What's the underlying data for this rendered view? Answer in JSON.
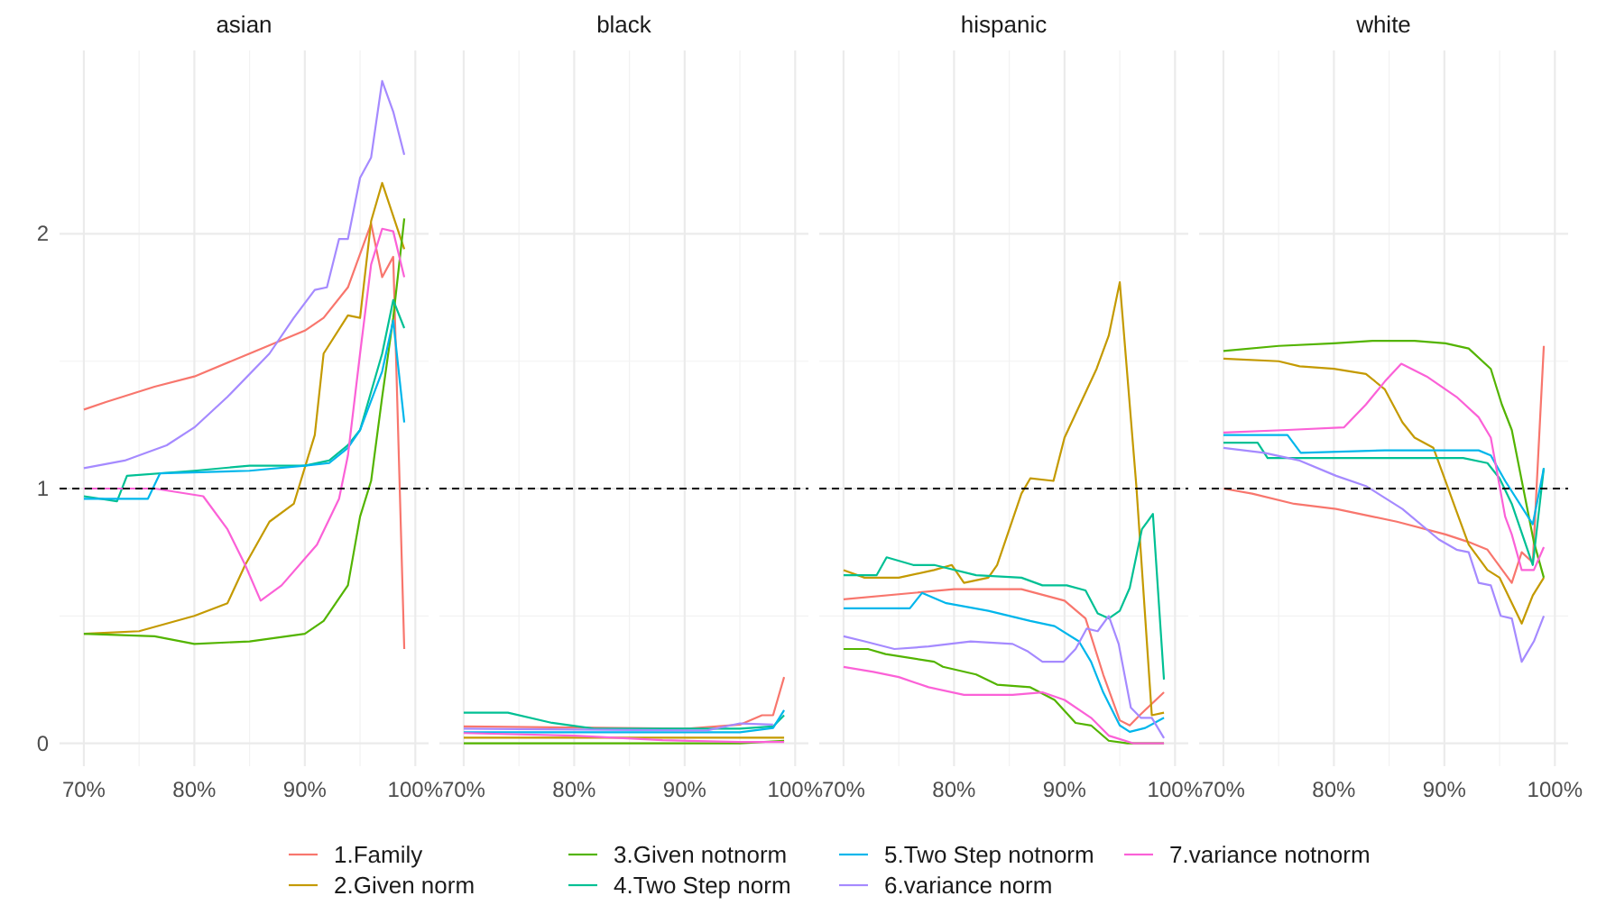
{
  "chart_data": [
    {
      "type": "line",
      "title": "asian",
      "xlim": [
        67.8,
        101.2
      ],
      "xticks": [
        {
          "value": 70,
          "label": "70%"
        },
        {
          "value": 80,
          "label": "80%"
        },
        {
          "value": 90,
          "label": "90%"
        },
        {
          "value": 100,
          "label": "100%"
        }
      ],
      "ylim": [
        -0.09,
        2.72
      ],
      "yticks": [
        0,
        1,
        2
      ],
      "grid": true,
      "legend": "bottom",
      "ref_lines": [
        {
          "axis": "y",
          "value": 1,
          "color": "#000000",
          "line_style": "dashed"
        }
      ],
      "series": [
        {
          "name": "1.Family",
          "color": "#f8766d",
          "x": [
            70,
            72,
            76.4,
            80,
            85,
            90,
            91.7,
            93.9,
            96,
            97,
            98,
            99
          ],
          "values": [
            1.31,
            1.34,
            1.4,
            1.44,
            1.53,
            1.62,
            1.67,
            1.79,
            2.04,
            1.83,
            1.91,
            0.37
          ]
        },
        {
          "name": "2.Given norm",
          "color": "#c49a00",
          "x": [
            70,
            75,
            80,
            83,
            84.6,
            86.8,
            89,
            90.9,
            91.7,
            93.9,
            95,
            96,
            97,
            99
          ],
          "values": [
            0.43,
            0.44,
            0.5,
            0.55,
            0.7,
            0.87,
            0.94,
            1.21,
            1.53,
            1.68,
            1.67,
            2.05,
            2.2,
            1.94
          ]
        },
        {
          "name": "3.Given notnorm",
          "color": "#53b400",
          "x": [
            70,
            76.4,
            80,
            85,
            90,
            91.7,
            93.9,
            95,
            96,
            97,
            98,
            99
          ],
          "values": [
            0.43,
            0.42,
            0.39,
            0.4,
            0.43,
            0.48,
            0.62,
            0.89,
            1.03,
            1.36,
            1.67,
            2.06
          ]
        },
        {
          "name": "4.Two Step norm",
          "color": "#00c094",
          "x": [
            70,
            73,
            73.9,
            80,
            85,
            90,
            92.2,
            93.9,
            95,
            97,
            98,
            99
          ],
          "values": [
            0.97,
            0.95,
            1.05,
            1.07,
            1.09,
            1.09,
            1.11,
            1.17,
            1.23,
            1.53,
            1.74,
            1.63
          ]
        },
        {
          "name": "5.Two Step notnorm",
          "color": "#00b6eb",
          "x": [
            70,
            75.8,
            76.9,
            85,
            90,
            92.2,
            93.9,
            95,
            97,
            98,
            99
          ],
          "values": [
            0.96,
            0.96,
            1.06,
            1.07,
            1.09,
            1.1,
            1.16,
            1.23,
            1.46,
            1.66,
            1.26
          ]
        },
        {
          "name": "6.variance norm",
          "color": "#a58aff",
          "x": [
            70,
            73.7,
            77.5,
            80,
            83,
            86.8,
            89,
            90.9,
            92,
            93.1,
            93.9,
            95,
            96,
            97,
            98,
            99
          ],
          "values": [
            1.08,
            1.11,
            1.17,
            1.24,
            1.36,
            1.53,
            1.67,
            1.78,
            1.79,
            1.98,
            1.98,
            2.22,
            2.3,
            2.6,
            2.48,
            2.31
          ]
        },
        {
          "name": "7.variance notnorm",
          "color": "#fb61d7",
          "x": [
            70,
            76.4,
            80.8,
            83,
            84.6,
            86,
            87.9,
            91.1,
            93.1,
            93.9,
            95,
            96,
            97,
            98,
            99
          ],
          "values": [
            1.0,
            1.0,
            0.97,
            0.84,
            0.7,
            0.56,
            0.62,
            0.78,
            0.96,
            1.13,
            1.53,
            1.88,
            2.02,
            2.01,
            1.83
          ]
        }
      ]
    },
    {
      "type": "line",
      "title": "black",
      "xlim": [
        67.8,
        101.2
      ],
      "xticks": [
        {
          "value": 70,
          "label": "70%"
        },
        {
          "value": 80,
          "label": "80%"
        },
        {
          "value": 90,
          "label": "90%"
        },
        {
          "value": 100,
          "label": "100%"
        }
      ],
      "ylim": [
        -0.09,
        2.72
      ],
      "yticks": [
        0,
        1,
        2
      ],
      "grid": true,
      "tick_labels": "x",
      "ref_lines": [
        {
          "axis": "y",
          "value": 1,
          "color": "#000000",
          "line_style": "dashed"
        }
      ],
      "series": [
        {
          "color": "#f8766d",
          "x": [
            70,
            90,
            95,
            97,
            98,
            99
          ],
          "values": [
            0.066,
            0.057,
            0.073,
            0.11,
            0.11,
            0.26
          ]
        },
        {
          "color": "#c49a00",
          "x": [
            70,
            99
          ],
          "values": [
            0.022,
            0.022
          ]
        },
        {
          "color": "#53b400",
          "x": [
            70,
            95,
            99
          ],
          "values": [
            0,
            0,
            0.01
          ]
        },
        {
          "color": "#00c094",
          "x": [
            70,
            74,
            78,
            81.8,
            95,
            98,
            99
          ],
          "values": [
            0.12,
            0.12,
            0.08,
            0.057,
            0.057,
            0.066,
            0.11
          ]
        },
        {
          "color": "#00b6eb",
          "x": [
            70,
            95,
            98,
            99
          ],
          "values": [
            0.043,
            0.043,
            0.06,
            0.13
          ]
        },
        {
          "color": "#a58aff",
          "x": [
            70,
            92,
            95,
            98
          ],
          "values": [
            0.057,
            0.05,
            0.078,
            0.073
          ]
        },
        {
          "color": "#fb61d7",
          "x": [
            70,
            80,
            88,
            95,
            99
          ],
          "values": [
            0.04,
            0.03,
            0.012,
            0.005,
            0.005
          ]
        }
      ]
    },
    {
      "type": "line",
      "title": "hispanic",
      "xlim": [
        67.8,
        101.2
      ],
      "xticks": [
        {
          "value": 70,
          "label": "70%"
        },
        {
          "value": 80,
          "label": "80%"
        },
        {
          "value": 90,
          "label": "90%"
        },
        {
          "value": 100,
          "label": "100%"
        }
      ],
      "ylim": [
        -0.09,
        2.72
      ],
      "yticks": [
        0,
        1,
        2
      ],
      "grid": true,
      "tick_labels": "x",
      "ref_lines": [
        {
          "axis": "y",
          "value": 1,
          "color": "#000000",
          "line_style": "dashed"
        }
      ],
      "series": [
        {
          "color": "#f8766d",
          "x": [
            70,
            80,
            86.1,
            90,
            91.9,
            93.5,
            95,
            95.9,
            96.8,
            99
          ],
          "values": [
            0.565,
            0.605,
            0.605,
            0.56,
            0.49,
            0.27,
            0.09,
            0.07,
            0.11,
            0.2
          ]
        },
        {
          "color": "#c49a00",
          "x": [
            70,
            71.9,
            75,
            78.2,
            79.8,
            80.9,
            83.1,
            83.9,
            86.1,
            86.9,
            89,
            90,
            92.9,
            94,
            95,
            96.5,
            97.9,
            99
          ],
          "values": [
            0.68,
            0.65,
            0.65,
            0.68,
            0.7,
            0.63,
            0.65,
            0.7,
            0.98,
            1.04,
            1.03,
            1.2,
            1.47,
            1.6,
            1.81,
            1.01,
            0.11,
            0.12
          ]
        },
        {
          "color": "#53b400",
          "x": [
            70,
            72.2,
            73.8,
            78.2,
            79,
            82,
            83.9,
            86.9,
            89.1,
            91,
            92.4,
            94,
            95.7,
            97.9,
            99
          ],
          "values": [
            0.37,
            0.37,
            0.35,
            0.32,
            0.3,
            0.27,
            0.23,
            0.22,
            0.17,
            0.08,
            0.07,
            0.01,
            0,
            0,
            0
          ]
        },
        {
          "color": "#00c094",
          "x": [
            70,
            73,
            73.9,
            76.3,
            78.2,
            82,
            86.1,
            88,
            90.2,
            91.9,
            93,
            94,
            95,
            95.9,
            97,
            98,
            99
          ],
          "values": [
            0.66,
            0.66,
            0.73,
            0.7,
            0.7,
            0.66,
            0.65,
            0.62,
            0.62,
            0.6,
            0.51,
            0.49,
            0.52,
            0.61,
            0.84,
            0.9,
            0.25
          ]
        },
        {
          "color": "#00b6eb",
          "x": [
            70,
            76,
            77.1,
            79.3,
            83.1,
            86.9,
            89.1,
            91.3,
            92.4,
            93.5,
            95,
            95.9,
            97.3,
            99
          ],
          "values": [
            0.53,
            0.53,
            0.59,
            0.55,
            0.52,
            0.48,
            0.46,
            0.4,
            0.32,
            0.2,
            0.07,
            0.045,
            0.06,
            0.1
          ]
        },
        {
          "color": "#a58aff",
          "x": [
            70,
            71.9,
            74.6,
            77.7,
            81.5,
            85.3,
            86.7,
            88,
            89.9,
            91,
            92,
            93,
            94,
            94.9,
            96,
            96.9,
            97.9,
            99
          ],
          "values": [
            0.42,
            0.4,
            0.37,
            0.38,
            0.4,
            0.39,
            0.36,
            0.32,
            0.32,
            0.37,
            0.45,
            0.44,
            0.5,
            0.39,
            0.14,
            0.1,
            0.1,
            0.02
          ]
        },
        {
          "color": "#fb61d7",
          "x": [
            70,
            72.7,
            75,
            77.7,
            80.9,
            85.3,
            88,
            90,
            92.4,
            94,
            96.2,
            99
          ],
          "values": [
            0.3,
            0.28,
            0.26,
            0.22,
            0.19,
            0.19,
            0.2,
            0.17,
            0.1,
            0.03,
            0,
            0
          ]
        }
      ]
    },
    {
      "type": "line",
      "title": "white",
      "xlim": [
        67.8,
        101.2
      ],
      "xticks": [
        {
          "value": 70,
          "label": "70%"
        },
        {
          "value": 80,
          "label": "80%"
        },
        {
          "value": 90,
          "label": "90%"
        },
        {
          "value": 100,
          "label": "100%"
        }
      ],
      "ylim": [
        -0.09,
        2.72
      ],
      "yticks": [
        0,
        1,
        2
      ],
      "grid": true,
      "tick_labels": "x",
      "ref_lines": [
        {
          "axis": "y",
          "value": 1,
          "color": "#000000",
          "line_style": "dashed"
        }
      ],
      "series": [
        {
          "color": "#f8766d",
          "x": [
            70,
            72.6,
            76.4,
            80.2,
            83.5,
            85.7,
            90.1,
            92.2,
            93.9,
            96.1,
            97,
            98,
            99
          ],
          "values": [
            1.0,
            0.98,
            0.94,
            0.92,
            0.89,
            0.87,
            0.82,
            0.79,
            0.76,
            0.63,
            0.75,
            0.71,
            1.56
          ]
        },
        {
          "color": "#c49a00",
          "x": [
            70,
            75,
            76.9,
            80,
            82.9,
            84.6,
            86.2,
            87.3,
            89,
            90.1,
            91.1,
            92.2,
            93.9,
            95,
            97,
            98,
            99
          ],
          "values": [
            1.51,
            1.5,
            1.48,
            1.47,
            1.45,
            1.39,
            1.26,
            1.2,
            1.16,
            1.03,
            0.91,
            0.78,
            0.68,
            0.65,
            0.47,
            0.58,
            0.65
          ]
        },
        {
          "color": "#53b400",
          "x": [
            70,
            75,
            80,
            83.5,
            87.3,
            90.1,
            92.2,
            94.2,
            95.2,
            96.1,
            97.1,
            98.1,
            99
          ],
          "values": [
            1.54,
            1.56,
            1.57,
            1.58,
            1.58,
            1.57,
            1.55,
            1.47,
            1.33,
            1.23,
            1.01,
            0.79,
            0.65
          ]
        },
        {
          "color": "#00c094",
          "x": [
            70,
            73.1,
            74,
            79.1,
            84.6,
            91.7,
            93.9,
            95,
            96.1,
            98,
            99
          ],
          "values": [
            1.18,
            1.18,
            1.12,
            1.12,
            1.12,
            1.12,
            1.1,
            1.04,
            0.94,
            0.7,
            1.08
          ]
        },
        {
          "color": "#00b6eb",
          "x": [
            70,
            75.8,
            77,
            84.6,
            90.1,
            93.1,
            94.2,
            95.5,
            98,
            99
          ],
          "values": [
            1.21,
            1.21,
            1.14,
            1.15,
            1.15,
            1.15,
            1.13,
            1.03,
            0.86,
            1.08
          ]
        },
        {
          "color": "#a58aff",
          "x": [
            70,
            73.7,
            76.9,
            80.2,
            82.9,
            86.2,
            89.5,
            91.1,
            92.2,
            93.1,
            94.2,
            95.1,
            96.1,
            97,
            98.1,
            99
          ],
          "values": [
            1.16,
            1.14,
            1.11,
            1.05,
            1.01,
            0.92,
            0.8,
            0.76,
            0.75,
            0.63,
            0.62,
            0.5,
            0.49,
            0.32,
            0.4,
            0.5
          ]
        },
        {
          "color": "#fb61d7",
          "x": [
            70,
            75.8,
            80.9,
            82.9,
            84.6,
            86.1,
            88.4,
            91.1,
            93.1,
            94.2,
            95.5,
            96.1,
            97,
            98.1,
            99
          ],
          "values": [
            1.22,
            1.23,
            1.24,
            1.33,
            1.42,
            1.49,
            1.44,
            1.36,
            1.28,
            1.2,
            0.89,
            0.82,
            0.68,
            0.68,
            0.77
          ]
        }
      ]
    }
  ]
}
